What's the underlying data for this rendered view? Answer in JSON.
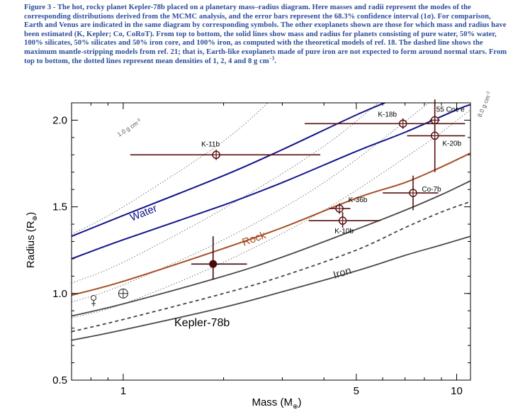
{
  "caption": {
    "main": "Figure 3 - The hot, rocky planet Kepler-78b placed on a planetary mass–radius diagram. Here masses and radii represent the modes of the corresponding distributions derived from the MCMC analysis, and the error bars represent the 68.3% confidence interval (1σ). For comparison, Earth and Venus are indicated in the same diagram by corresponding symbols. The other exoplanets shown are those for which mass and radius have been estimated (K, Kepler; Co, CoRoT). From top to bottom, the solid lines show mass and radius for planets consisting of pure water, 50% water, 100% silicates, 50% silicates and 50% iron core, and 100% iron, as computed with the theoretical models of ref. 18. The dashed line shows the maximum mantle-stripping models from ref. 21; that is, Earth-like exoplanets made of pure iron are not expected to form around normal stars. From top to bottom, the dotted lines represent mean densities of 1, 2, 4 and 8 g cm",
    "sup": "−3",
    "end": "."
  },
  "colors": {
    "water": "#10148a",
    "rock": "#a64e22",
    "iron": "#4a4a4a",
    "exoplanet": "#5a0f0f",
    "kepler78b": "#4a0808",
    "density": "#777777"
  },
  "chart_data": {
    "type": "scatter",
    "xscale": "log",
    "xlim": [
      0.7,
      11.0
    ],
    "ylim": [
      0.5,
      2.1
    ],
    "xticks": [
      1,
      5,
      10
    ],
    "xtick_labels": [
      "1",
      "5",
      "10"
    ],
    "yticks": [
      0.5,
      1.0,
      1.5,
      2.0
    ],
    "ytick_labels": [
      "0.5",
      "1.0",
      "1.5",
      "2.0"
    ],
    "xlabel": "Mass (M",
    "xlabel_sub": "⊕",
    "xlabel_end": ")",
    "ylabel": "Radius (R",
    "ylabel_sub": "⊕",
    "ylabel_end": ")",
    "points": [
      {
        "name": "K-11b",
        "x": 1.9,
        "y": 1.8,
        "xerr": [
          1.05,
          3.9
        ],
        "yerr": [
          1.77,
          1.83
        ],
        "label_dx": -8,
        "label_dy": -12
      },
      {
        "name": "K-18b",
        "x": 6.9,
        "y": 1.98,
        "xerr": [
          3.5,
          10.6
        ],
        "yerr": [
          1.95,
          2.01
        ],
        "label_dx": -22,
        "label_dy": -10
      },
      {
        "name": "55 Cnc e",
        "x": 8.6,
        "y": 2.0,
        "xerr": [
          8.3,
          8.9
        ],
        "yerr": [
          1.9,
          2.1
        ],
        "label_dx": 22,
        "label_dy": -12
      },
      {
        "name": "K-20b",
        "x": 8.6,
        "y": 1.91,
        "xerr": [
          7.1,
          10.6
        ],
        "yerr": [
          1.7,
          2.12
        ],
        "label_dx": 24,
        "label_dy": 14
      },
      {
        "name": "Co-7b",
        "x": 7.4,
        "y": 1.58,
        "xerr": [
          6.0,
          8.8
        ],
        "yerr": [
          1.48,
          1.68
        ],
        "label_dx": 26,
        "label_dy": -2
      },
      {
        "name": "K-36b",
        "x": 4.45,
        "y": 1.49,
        "xerr": [
          4.15,
          4.8
        ],
        "yerr": [
          1.46,
          1.52
        ],
        "label_dx": 26,
        "label_dy": -9
      },
      {
        "name": "K-10b",
        "x": 4.55,
        "y": 1.42,
        "xerr": [
          3.6,
          5.9
        ],
        "yerr": [
          1.38,
          1.47
        ],
        "label_dx": 2,
        "label_dy": 18
      }
    ],
    "kepler78b": {
      "name": "Kepler-78b",
      "x": 1.86,
      "y": 1.17,
      "xerr": [
        1.6,
        2.35
      ],
      "yerr": [
        1.08,
        1.33
      ]
    },
    "earth": {
      "name": "Earth",
      "x": 1.0,
      "y": 1.0
    },
    "venus": {
      "name": "Venus",
      "x": 0.815,
      "y": 0.95
    },
    "curves": [
      {
        "name": "Water",
        "style": "water",
        "points": [
          [
            0.7,
            1.33
          ],
          [
            1,
            1.45
          ],
          [
            2,
            1.68
          ],
          [
            3,
            1.83
          ],
          [
            5,
            2.03
          ],
          [
            7,
            2.15
          ],
          [
            10,
            2.29
          ],
          [
            11,
            2.33
          ]
        ]
      },
      {
        "name": "",
        "style": "water",
        "points": [
          [
            0.7,
            1.2
          ],
          [
            1,
            1.31
          ],
          [
            2,
            1.51
          ],
          [
            3,
            1.64
          ],
          [
            5,
            1.82
          ],
          [
            7,
            1.93
          ],
          [
            10,
            2.06
          ],
          [
            11,
            2.09
          ]
        ]
      },
      {
        "name": "Rock",
        "style": "rock",
        "points": [
          [
            0.7,
            0.99
          ],
          [
            1,
            1.07
          ],
          [
            2,
            1.26
          ],
          [
            3,
            1.38
          ],
          [
            5,
            1.55
          ],
          [
            7,
            1.64
          ],
          [
            9,
            1.73
          ],
          [
            11,
            1.81
          ]
        ]
      },
      {
        "name": "",
        "style": "iron",
        "points": [
          [
            0.7,
            0.87
          ],
          [
            1,
            0.94
          ],
          [
            2,
            1.1
          ],
          [
            3,
            1.21
          ],
          [
            5,
            1.37
          ],
          [
            7,
            1.48
          ],
          [
            9,
            1.57
          ],
          [
            11,
            1.65
          ]
        ]
      },
      {
        "name": "Iron",
        "style": "iron",
        "points": [
          [
            0.7,
            0.73
          ],
          [
            1,
            0.79
          ],
          [
            2,
            0.92
          ],
          [
            3,
            1.01
          ],
          [
            5,
            1.13
          ],
          [
            7,
            1.22
          ],
          [
            9,
            1.28
          ],
          [
            11,
            1.33
          ]
        ]
      }
    ],
    "dashed_curve": {
      "points": [
        [
          0.7,
          0.78
        ],
        [
          1,
          0.85
        ],
        [
          2,
          1.0
        ],
        [
          3,
          1.1
        ],
        [
          5,
          1.25
        ],
        [
          7,
          1.38
        ],
        [
          9,
          1.47
        ],
        [
          11,
          1.53
        ]
      ]
    },
    "density_lines": [
      {
        "label": "1.0 g cm",
        "sup": "-3",
        "points": [
          [
            0.7,
            1.34
          ],
          [
            1,
            1.5
          ],
          [
            2,
            1.88
          ],
          [
            3,
            2.18
          ]
        ]
      },
      {
        "label": "",
        "sup": "",
        "points": [
          [
            0.7,
            1.06
          ],
          [
            1,
            1.18
          ],
          [
            2,
            1.49
          ],
          [
            4,
            1.85
          ],
          [
            6.5,
            2.18
          ]
        ]
      },
      {
        "label": "",
        "sup": "",
        "points": [
          [
            0.7,
            0.95
          ],
          [
            1,
            1.05
          ],
          [
            2,
            1.31
          ],
          [
            4,
            1.64
          ],
          [
            8,
            2.08
          ],
          [
            9,
            2.16
          ]
        ]
      },
      {
        "label": "8.0 g cm",
        "sup": "-3",
        "points": [
          [
            0.7,
            0.86
          ],
          [
            1,
            0.94
          ],
          [
            2,
            1.18
          ],
          [
            4,
            1.48
          ],
          [
            8,
            1.86
          ],
          [
            11,
            2.06
          ]
        ]
      }
    ],
    "annotations": [
      "Water",
      "Rock",
      "Iron",
      "Kepler-78b"
    ]
  }
}
